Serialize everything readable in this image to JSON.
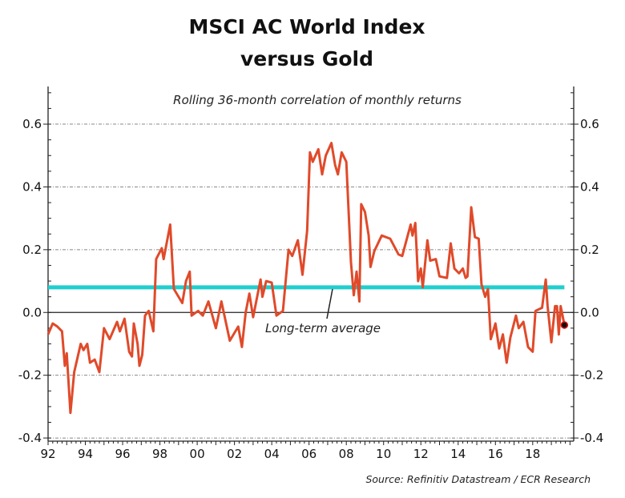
{
  "chart_data": {
    "type": "line",
    "title": "MSCI AC World Index",
    "title_line2": "versus Gold",
    "subtitle": "Rolling 36-month correlation of monthly returns",
    "source": "Source: Refinitiv Datastream / ECR Research",
    "xlabel": "",
    "ylabel": "",
    "xlim": [
      1992,
      2020.2
    ],
    "ylim": [
      -0.41,
      0.72
    ],
    "x_tick_labels": [
      "92",
      "94",
      "96",
      "98",
      "00",
      "02",
      "04",
      "06",
      "08",
      "10",
      "12",
      "14",
      "16",
      "18"
    ],
    "x_tick_values": [
      1992,
      1994,
      1996,
      1998,
      2000,
      2002,
      2004,
      2006,
      2008,
      2010,
      2012,
      2014,
      2016,
      2018
    ],
    "y_tick_labels": [
      "0.6",
      "0.4",
      "0.2",
      "0.0",
      "-0.2",
      "-0.4"
    ],
    "y_tick_values": [
      0.6,
      0.4,
      0.2,
      0.0,
      -0.2,
      -0.4
    ],
    "grid": true,
    "colors": {
      "series": "#e04a2a",
      "average": "#1fcfcf",
      "endpoint": "#8b0000"
    },
    "reference_line": {
      "label": "Long-term average",
      "value": 0.08
    },
    "series": [
      {
        "name": "Correlation",
        "x": [
          1992.0,
          1992.25,
          1992.5,
          1992.75,
          1992.9,
          1993.0,
          1993.2,
          1993.4,
          1993.75,
          1993.9,
          1994.1,
          1994.25,
          1994.5,
          1994.75,
          1995.0,
          1995.3,
          1995.7,
          1995.85,
          1996.1,
          1996.35,
          1996.5,
          1996.6,
          1996.8,
          1996.9,
          1997.05,
          1997.2,
          1997.4,
          1997.65,
          1997.8,
          1998.1,
          1998.2,
          1998.55,
          1998.75,
          1999.2,
          1999.4,
          1999.6,
          1999.7,
          2000.05,
          2000.3,
          2000.6,
          2001.0,
          2001.3,
          2001.75,
          2002.2,
          2002.4,
          2002.6,
          2002.8,
          2003.0,
          2003.4,
          2003.5,
          2003.7,
          2004.0,
          2004.25,
          2004.6,
          2004.9,
          2005.1,
          2005.4,
          2005.65,
          2005.9,
          2006.05,
          2006.2,
          2006.5,
          2006.7,
          2006.9,
          2007.2,
          2007.4,
          2007.55,
          2007.75,
          2008.0,
          2008.25,
          2008.4,
          2008.55,
          2008.7,
          2008.8,
          2009.0,
          2009.2,
          2009.3,
          2009.5,
          2009.9,
          2010.35,
          2010.8,
          2011.0,
          2011.45,
          2011.55,
          2011.7,
          2011.85,
          2012.0,
          2012.1,
          2012.35,
          2012.5,
          2012.8,
          2013.0,
          2013.4,
          2013.6,
          2013.8,
          2014.05,
          2014.25,
          2014.4,
          2014.5,
          2014.7,
          2014.9,
          2015.1,
          2015.25,
          2015.45,
          2015.6,
          2015.75,
          2016.0,
          2016.2,
          2016.4,
          2016.6,
          2016.8,
          2017.1,
          2017.25,
          2017.5,
          2017.75,
          2018.0,
          2018.15,
          2018.5,
          2018.7,
          2018.8,
          2019.0,
          2019.2,
          2019.3,
          2019.4,
          2019.5,
          2019.7
        ],
        "y": [
          -0.07,
          -0.035,
          -0.045,
          -0.06,
          -0.17,
          -0.13,
          -0.32,
          -0.19,
          -0.1,
          -0.12,
          -0.1,
          -0.16,
          -0.15,
          -0.19,
          -0.05,
          -0.085,
          -0.03,
          -0.06,
          -0.02,
          -0.125,
          -0.14,
          -0.035,
          -0.1,
          -0.17,
          -0.135,
          -0.01,
          0.005,
          -0.06,
          0.17,
          0.205,
          0.17,
          0.28,
          0.075,
          0.03,
          0.1,
          0.13,
          -0.01,
          0.005,
          -0.01,
          0.035,
          -0.05,
          0.035,
          -0.09,
          -0.045,
          -0.11,
          0.0,
          0.06,
          -0.015,
          0.105,
          0.05,
          0.1,
          0.095,
          -0.01,
          0.005,
          0.2,
          0.18,
          0.23,
          0.12,
          0.26,
          0.51,
          0.48,
          0.52,
          0.44,
          0.5,
          0.54,
          0.47,
          0.44,
          0.51,
          0.48,
          0.16,
          0.055,
          0.13,
          0.035,
          0.345,
          0.32,
          0.245,
          0.145,
          0.195,
          0.245,
          0.235,
          0.185,
          0.18,
          0.28,
          0.245,
          0.285,
          0.1,
          0.14,
          0.08,
          0.23,
          0.165,
          0.17,
          0.115,
          0.11,
          0.22,
          0.14,
          0.125,
          0.14,
          0.11,
          0.115,
          0.335,
          0.24,
          0.235,
          0.09,
          0.05,
          0.075,
          -0.085,
          -0.035,
          -0.115,
          -0.07,
          -0.16,
          -0.08,
          -0.01,
          -0.05,
          -0.03,
          -0.11,
          -0.125,
          0.005,
          0.015,
          0.105,
          0.02,
          -0.095,
          0.02,
          0.02,
          -0.07,
          0.02,
          -0.04
        ]
      }
    ]
  }
}
